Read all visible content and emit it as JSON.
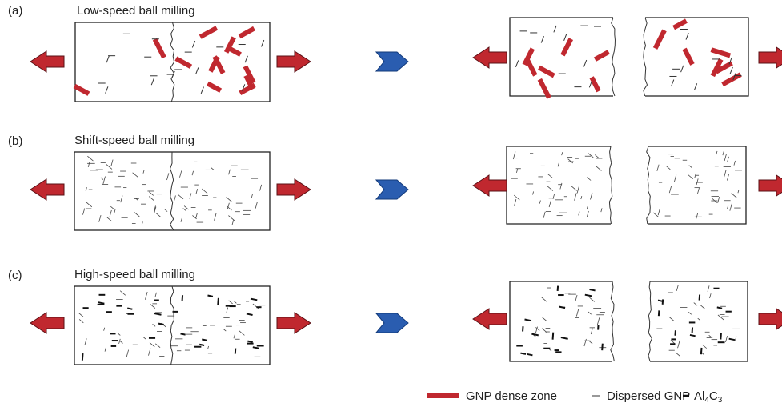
{
  "panels": [
    {
      "label": "(a)",
      "title": "Low-speed ball milling"
    },
    {
      "label": "(b)",
      "title": "Shift-speed ball milling"
    },
    {
      "label": "(c)",
      "title": "High-speed ball milling"
    }
  ],
  "legend": {
    "items": [
      {
        "label": "GNP dense zone"
      },
      {
        "label": "Dispersed GNP"
      },
      {
        "label_parts": [
          "Al",
          "4",
          "C",
          "3"
        ]
      }
    ]
  }
}
